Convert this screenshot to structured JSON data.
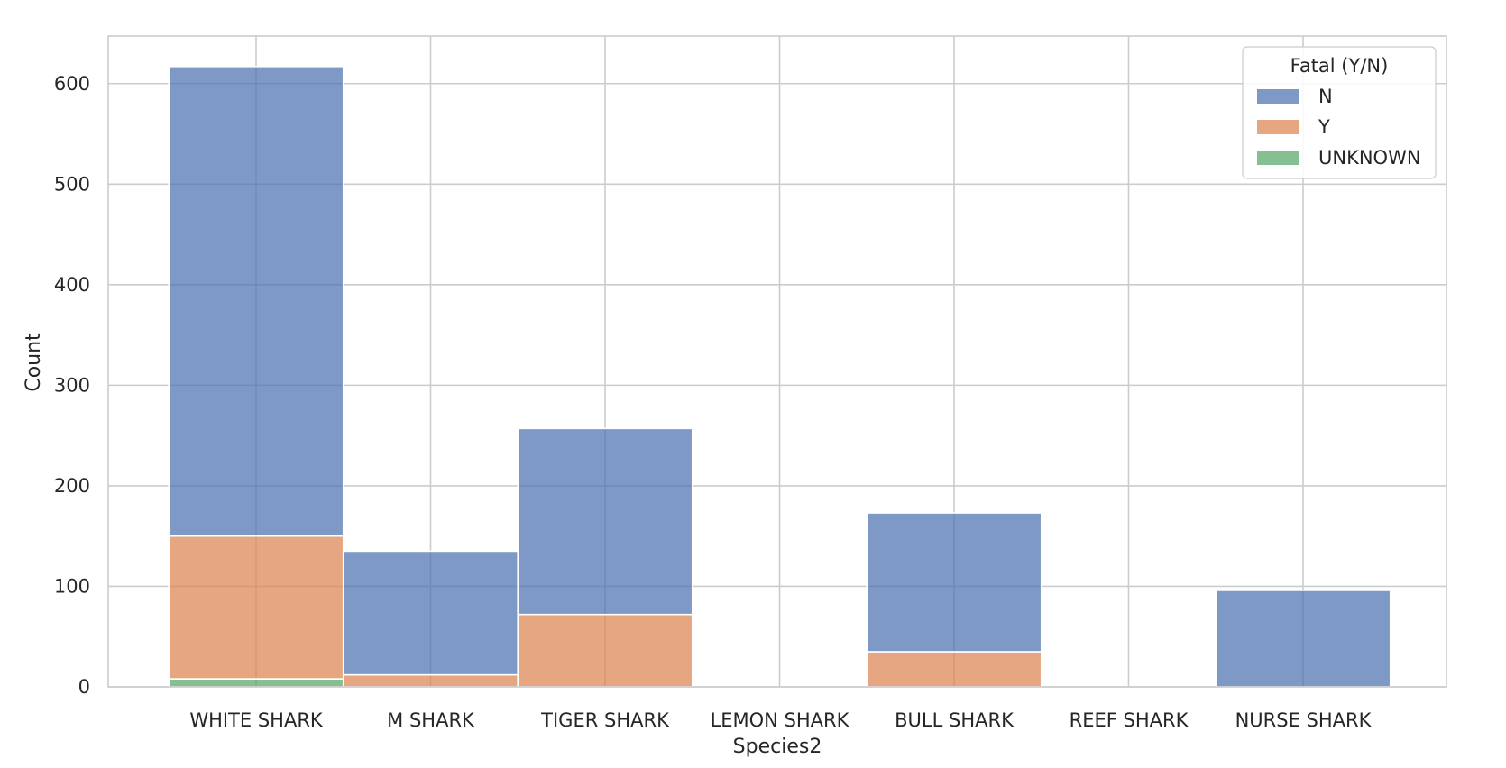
{
  "chart_data": {
    "type": "bar",
    "stacked": true,
    "categories": [
      "WHITE SHARK",
      "M SHARK",
      "TIGER SHARK",
      "LEMON SHARK",
      "BULL SHARK",
      "REEF SHARK",
      "NURSE SHARK"
    ],
    "series": [
      {
        "name": "UNKNOWN",
        "color": "#55a868",
        "values": [
          8,
          0,
          0,
          0,
          0,
          0,
          0
        ]
      },
      {
        "name": "Y",
        "color": "#dd8452",
        "values": [
          142,
          12,
          72,
          0,
          35,
          0,
          0
        ]
      },
      {
        "name": "N",
        "color": "#4c72b0",
        "values": [
          467,
          123,
          185,
          0,
          138,
          0,
          96
        ]
      }
    ],
    "xlabel": "Species2",
    "ylabel": "Count",
    "ylim": [
      0,
      650
    ],
    "yticks": [
      0,
      100,
      200,
      300,
      400,
      500,
      600
    ],
    "grid": true,
    "legend": {
      "title": "Fatal (Y/N)",
      "entries": [
        "N",
        "Y",
        "UNKNOWN"
      ],
      "placement": "top-right"
    }
  }
}
